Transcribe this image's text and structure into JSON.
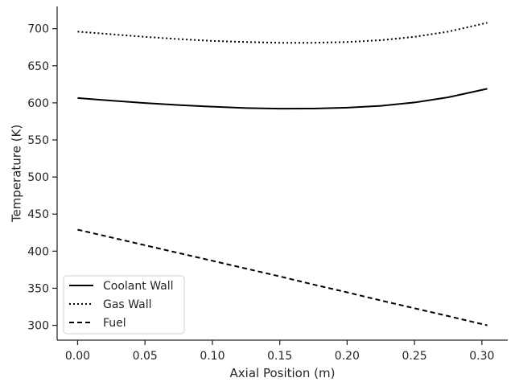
{
  "chart_data": {
    "type": "line",
    "title": "",
    "xlabel": "Axial Position (m)",
    "ylabel": "Temperature (K)",
    "xlim": [
      -0.0152,
      0.3192
    ],
    "ylim": [
      280,
      730
    ],
    "xticks": [
      0.0,
      0.05,
      0.1,
      0.15,
      0.2,
      0.25,
      0.3
    ],
    "xtick_labels": [
      "0.00",
      "0.05",
      "0.10",
      "0.15",
      "0.20",
      "0.25",
      "0.30"
    ],
    "yticks": [
      300,
      350,
      400,
      450,
      500,
      550,
      600,
      650,
      700
    ],
    "ytick_labels": [
      "300",
      "350",
      "400",
      "450",
      "500",
      "550",
      "600",
      "650",
      "700"
    ],
    "grid": false,
    "legend_position": "lower-left",
    "x": [
      0.0,
      0.025,
      0.05,
      0.075,
      0.1,
      0.125,
      0.15,
      0.175,
      0.2,
      0.225,
      0.25,
      0.275,
      0.304
    ],
    "series": [
      {
        "name": "Coolant Wall",
        "style": "solid",
        "color": "#000000",
        "values": [
          606.5,
          603.0,
          599.8,
          597.0,
          594.8,
          593.0,
          592.2,
          592.3,
          593.5,
          596.0,
          600.5,
          607.5,
          619.0
        ]
      },
      {
        "name": "Gas Wall",
        "style": "dotted",
        "color": "#000000",
        "values": [
          696.0,
          692.5,
          689.0,
          686.0,
          683.5,
          682.0,
          681.0,
          681.0,
          682.0,
          684.5,
          689.0,
          696.0,
          708.0
        ]
      },
      {
        "name": "Fuel",
        "style": "dashed",
        "color": "#000000",
        "values": [
          429.0,
          418.5,
          408.0,
          397.5,
          387.0,
          376.5,
          366.0,
          355.0,
          344.5,
          333.5,
          323.0,
          312.5,
          300.0
        ]
      }
    ]
  }
}
